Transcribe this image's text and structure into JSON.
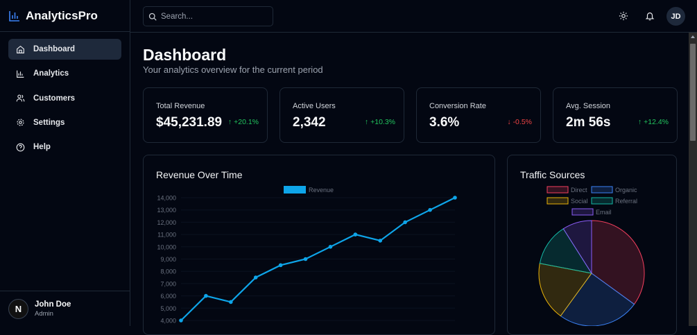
{
  "app": {
    "name": "AnalyticsPro"
  },
  "sidebar": {
    "items": [
      {
        "label": "Dashboard",
        "icon": "home-icon"
      },
      {
        "label": "Analytics",
        "icon": "bar-chart-icon"
      },
      {
        "label": "Customers",
        "icon": "users-icon"
      },
      {
        "label": "Settings",
        "icon": "gear-icon"
      },
      {
        "label": "Help",
        "icon": "help-icon"
      }
    ],
    "user": {
      "name": "John Doe",
      "role": "Admin",
      "avatar": "N"
    }
  },
  "header": {
    "search_placeholder": "Search...",
    "avatar": "JD"
  },
  "page": {
    "title": "Dashboard",
    "subtitle": "Your analytics overview for the current period"
  },
  "stats": [
    {
      "label": "Total Revenue",
      "value": "$45,231.89",
      "delta": "+20.1%",
      "trend": "up"
    },
    {
      "label": "Active Users",
      "value": "2,342",
      "delta": "+10.3%",
      "trend": "up"
    },
    {
      "label": "Conversion Rate",
      "value": "3.6%",
      "delta": "-0.5%",
      "trend": "down"
    },
    {
      "label": "Avg. Session",
      "value": "2m 56s",
      "delta": "+12.4%",
      "trend": "up"
    }
  ],
  "colors": {
    "accent": "#0ea5e9",
    "up": "#22c55e",
    "down": "#ef4444"
  },
  "chart_data": [
    {
      "type": "line",
      "title": "Revenue Over Time",
      "legend": [
        "Revenue"
      ],
      "series": [
        {
          "name": "Revenue",
          "values": [
            4000,
            6000,
            5500,
            7500,
            8500,
            9000,
            10000,
            11000,
            10500,
            12000,
            13000,
            14000
          ]
        }
      ],
      "yticks": [
        4000,
        5000,
        6000,
        7000,
        8000,
        9000,
        10000,
        11000,
        12000,
        13000,
        14000
      ],
      "ytick_labels": [
        "4,000",
        "5,000",
        "6,000",
        "7,000",
        "8,000",
        "9,000",
        "10,000",
        "11,000",
        "12,000",
        "13,000",
        "14,000"
      ],
      "ylim": [
        4000,
        14000
      ]
    },
    {
      "type": "pie",
      "title": "Traffic Sources",
      "legend_placement": "top",
      "categories": [
        "Direct",
        "Organic",
        "Social",
        "Referral",
        "Email"
      ],
      "values": [
        35,
        25,
        18,
        13,
        9
      ],
      "colors": [
        "#f43f5e",
        "#3b82f6",
        "#eab308",
        "#14b8a6",
        "#8b5cf6"
      ]
    }
  ]
}
